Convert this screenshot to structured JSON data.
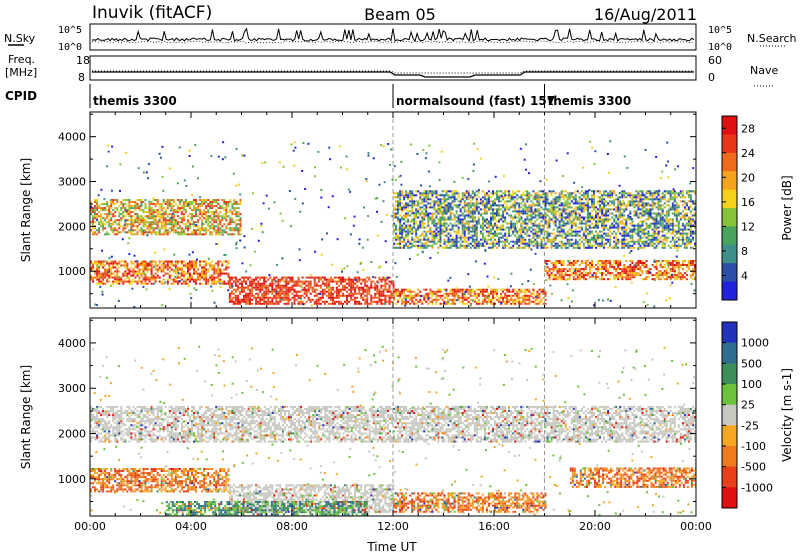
{
  "header": {
    "station": "Inuvik (fitACF)",
    "beam": "Beam 05",
    "date": "16/Aug/2011"
  },
  "top_panels": {
    "nsky_label": "N.Sky",
    "nsearch_label": "N.Search",
    "nsky_ticks": [
      "10^5",
      "10^0"
    ],
    "nsky_right_ticks": [
      "10^5",
      "10^0"
    ],
    "freq_label_line1": "Freq.",
    "freq_label_line2": "[MHz]",
    "freq_ticks": [
      "18",
      "8"
    ],
    "nave_label": "Nave",
    "nave_ticks": [
      "60",
      "0"
    ],
    "cpid_label": "CPID",
    "cpid_segments": [
      {
        "label": "themis 3300",
        "start_hour": 0,
        "end_hour": 12
      },
      {
        "label": "normalsound (fast) 157",
        "start_hour": 12,
        "end_hour": 18
      },
      {
        "label": "themis 3300",
        "start_hour": 18,
        "end_hour": 24
      }
    ]
  },
  "chart_data": [
    {
      "type": "heatmap",
      "title": "",
      "xlabel": "",
      "ylabel": "Slant Range [km]",
      "xlim": [
        0,
        24
      ],
      "ylim": [
        180,
        4550
      ],
      "yticks": [
        1000,
        2000,
        3000,
        4000
      ],
      "colorbar": {
        "label": "Power [dB]",
        "ticks": [
          4,
          8,
          12,
          16,
          20,
          24,
          28
        ],
        "range": [
          0,
          30
        ],
        "colors": [
          "#2222dd",
          "#2a4fa6",
          "#3f8f8a",
          "#49a35c",
          "#86c33a",
          "#f2d21b",
          "#f5a31e",
          "#f06a1e",
          "#e8361a",
          "#e01010"
        ]
      },
      "echo_bands": [
        {
          "hours": [
            0,
            5.5
          ],
          "ranges_km": [
            700,
            1200
          ],
          "level": "high"
        },
        {
          "hours": [
            5.5,
            12
          ],
          "ranges_km": [
            250,
            850
          ],
          "level": "very high"
        },
        {
          "hours": [
            12,
            18
          ],
          "ranges_km": [
            250,
            600
          ],
          "level": "high"
        },
        {
          "hours": [
            18,
            24
          ],
          "ranges_km": [
            800,
            1250
          ],
          "level": "high"
        },
        {
          "hours": [
            0,
            6
          ],
          "ranges_km": [
            1800,
            2600
          ],
          "level": "medium"
        },
        {
          "hours": [
            12,
            24
          ],
          "ranges_km": [
            1500,
            2800
          ],
          "level": "low to medium"
        }
      ]
    },
    {
      "type": "heatmap",
      "title": "",
      "xlabel": "Time UT",
      "ylabel": "Slant Range [km]",
      "xlim": [
        0,
        24
      ],
      "ylim": [
        180,
        4550
      ],
      "yticks": [
        1000,
        2000,
        3000,
        4000
      ],
      "xticks": [
        "00:00",
        "04:00",
        "08:00",
        "12:00",
        "16:00",
        "20:00",
        "00:00"
      ],
      "colorbar": {
        "label": "Velocity [m s-1]",
        "ticks": [
          1000,
          500,
          100,
          25,
          -25,
          -100,
          -500,
          -1000
        ],
        "colors": [
          "#2233bb",
          "#2f6e8f",
          "#3c8f5a",
          "#6cc23a",
          "#c8c8c0",
          "#f5a623",
          "#f07a1e",
          "#e8401a",
          "#e01010"
        ]
      },
      "echo_bands": [
        {
          "hours": [
            0,
            5.5
          ],
          "ranges_km": [
            700,
            1200
          ],
          "velocity": "-100 to -500"
        },
        {
          "hours": [
            5.5,
            12
          ],
          "ranges_km": [
            250,
            850
          ],
          "velocity": "-25 to 25"
        },
        {
          "hours": [
            3,
            11
          ],
          "ranges_km": [
            150,
            500
          ],
          "velocity": "100 to 500"
        },
        {
          "hours": [
            12,
            18
          ],
          "ranges_km": [
            250,
            700
          ],
          "velocity": "-100 to -500"
        },
        {
          "hours": [
            0,
            24
          ],
          "ranges_km": [
            1800,
            2600
          ],
          "velocity": "-25 to 25"
        },
        {
          "hours": [
            19,
            24
          ],
          "ranges_km": [
            800,
            1250
          ],
          "velocity": "-100 to -500"
        }
      ]
    }
  ]
}
